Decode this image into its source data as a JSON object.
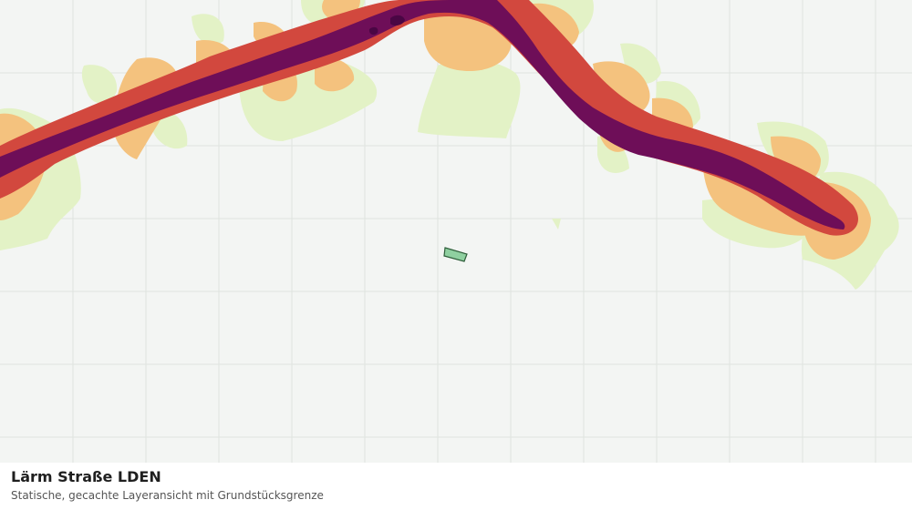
{
  "map": {
    "layer": "Lärm Straße LDEN",
    "colors": {
      "background": "#f3f5f3",
      "grid": "#dfe3df",
      "band_lowest": "#e3f2c6",
      "band_low": "#f4c27e",
      "band_mid": "#d2483e",
      "band_high": "#6e0e58",
      "band_highest": "#4a0644",
      "parcel_fill": "#8fd0a0",
      "parcel_stroke": "#2e5e3a"
    }
  },
  "caption": {
    "title": "Lärm Straße LDEN",
    "subtitle": "Statische, gecachte Layeransicht mit Grundstücksgrenze"
  }
}
